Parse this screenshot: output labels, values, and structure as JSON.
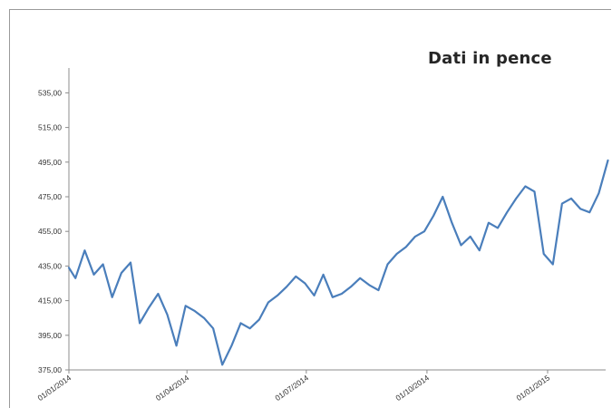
{
  "chart_data": {
    "type": "line",
    "title": "Dati in pence",
    "xlabel": "",
    "ylabel": "",
    "ylim": [
      375,
      545
    ],
    "y_ticks": [
      "375,00",
      "395,00",
      "415,00",
      "435,00",
      "455,00",
      "475,00",
      "495,00",
      "515,00",
      "535,00"
    ],
    "x_ticks": [
      "01/01/2014",
      "01/04/2014",
      "01/07/2014",
      "01/10/2014",
      "01/01/2015"
    ],
    "grid": false,
    "line_color": "#4a7ebb",
    "series": [
      {
        "x": [
          "2014-01-01",
          "2014-01-06",
          "2014-01-13",
          "2014-01-20",
          "2014-01-27",
          "2014-02-03",
          "2014-02-10",
          "2014-02-17",
          "2014-02-24",
          "2014-03-03",
          "2014-03-10",
          "2014-03-17",
          "2014-03-24",
          "2014-03-31",
          "2014-04-07",
          "2014-04-14",
          "2014-04-21",
          "2014-04-28",
          "2014-05-05",
          "2014-05-12",
          "2014-05-19",
          "2014-05-26",
          "2014-06-02",
          "2014-06-09",
          "2014-06-16",
          "2014-06-23",
          "2014-06-30",
          "2014-07-07",
          "2014-07-14",
          "2014-07-21",
          "2014-07-28",
          "2014-08-04",
          "2014-08-11",
          "2014-08-18",
          "2014-08-25",
          "2014-09-01",
          "2014-09-08",
          "2014-09-15",
          "2014-09-22",
          "2014-09-29",
          "2014-10-06",
          "2014-10-13",
          "2014-10-20",
          "2014-10-27",
          "2014-11-03",
          "2014-11-10",
          "2014-11-17",
          "2014-11-24",
          "2014-12-01",
          "2014-12-08",
          "2014-12-15",
          "2014-12-22",
          "2014-12-29",
          "2015-01-05",
          "2015-01-12",
          "2015-01-19",
          "2015-01-26",
          "2015-02-02",
          "2015-02-09",
          "2015-02-16"
        ],
        "values": [
          434,
          428,
          444,
          430,
          436,
          417,
          431,
          437,
          402,
          411,
          419,
          407,
          389,
          412,
          409,
          405,
          399,
          378,
          389,
          402,
          399,
          404,
          414,
          418,
          423,
          429,
          425,
          418,
          430,
          417,
          419,
          423,
          428,
          424,
          421,
          436,
          442,
          446,
          452,
          455,
          464,
          475,
          460,
          447,
          452,
          444,
          460,
          457,
          466,
          474,
          481,
          478,
          442,
          436,
          471,
          474,
          468,
          466,
          477,
          496
        ]
      }
    ]
  }
}
